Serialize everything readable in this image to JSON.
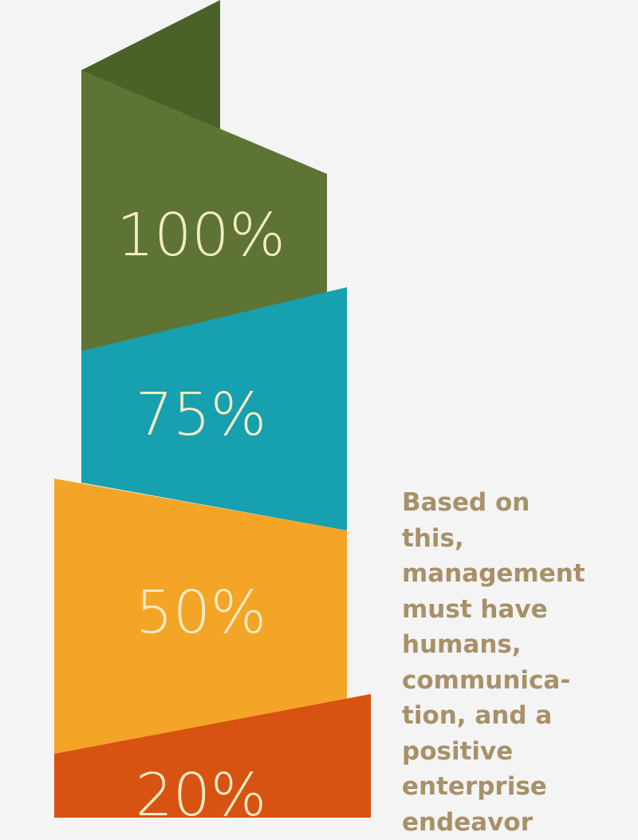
{
  "colors": {
    "background": "#f4f4f4",
    "olive": "#5e7434",
    "olive_dark": "#4b6128",
    "teal": "#17a0b0",
    "orange": "#f4a427",
    "red_orange": "#d85212",
    "label": "#f3ecc4",
    "text": "#a89068"
  },
  "segments": [
    {
      "label": "100%",
      "color_key": "olive"
    },
    {
      "label": "75%",
      "color_key": "teal"
    },
    {
      "label": "50%",
      "color_key": "orange"
    },
    {
      "label": "20%",
      "color_key": "red_orange"
    }
  ],
  "description": {
    "lines": [
      "Based on",
      "this,",
      "management",
      "must have",
      "humans,",
      "communica-",
      "tion, and a",
      "positive",
      "enterprise",
      "endeavor"
    ]
  }
}
